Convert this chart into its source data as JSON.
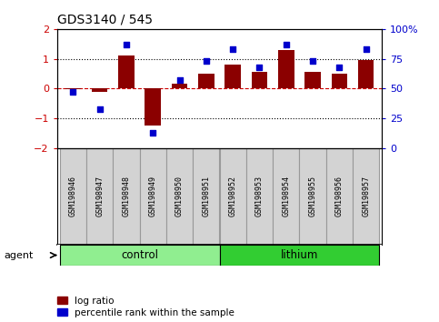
{
  "title": "GDS3140 / 545",
  "samples": [
    "GSM198946",
    "GSM198947",
    "GSM198948",
    "GSM198949",
    "GSM198950",
    "GSM198951",
    "GSM198952",
    "GSM198953",
    "GSM198954",
    "GSM198955",
    "GSM198956",
    "GSM198957"
  ],
  "log_ratio": [
    -0.03,
    -0.1,
    1.1,
    -1.25,
    0.15,
    0.5,
    0.8,
    0.55,
    1.3,
    0.55,
    0.5,
    0.95
  ],
  "percentile_rank": [
    47,
    33,
    87,
    13,
    57,
    73,
    83,
    68,
    87,
    73,
    68,
    83
  ],
  "bar_color": "#8B0000",
  "dot_color": "#0000CC",
  "control_color": "#90EE90",
  "lithium_color": "#32CD32",
  "ylim": [
    -2,
    2
  ],
  "yticks_left": [
    -2,
    -1,
    0,
    1,
    2
  ],
  "yticks_right": [
    0,
    25,
    50,
    75,
    100
  ],
  "zero_line_color": "#cc0000",
  "agent_label": "agent",
  "control_label": "control",
  "lithium_label": "lithium",
  "legend_log_ratio": "log ratio",
  "legend_percentile": "percentile rank within the sample",
  "n_control": 6,
  "n_lithium": 6
}
